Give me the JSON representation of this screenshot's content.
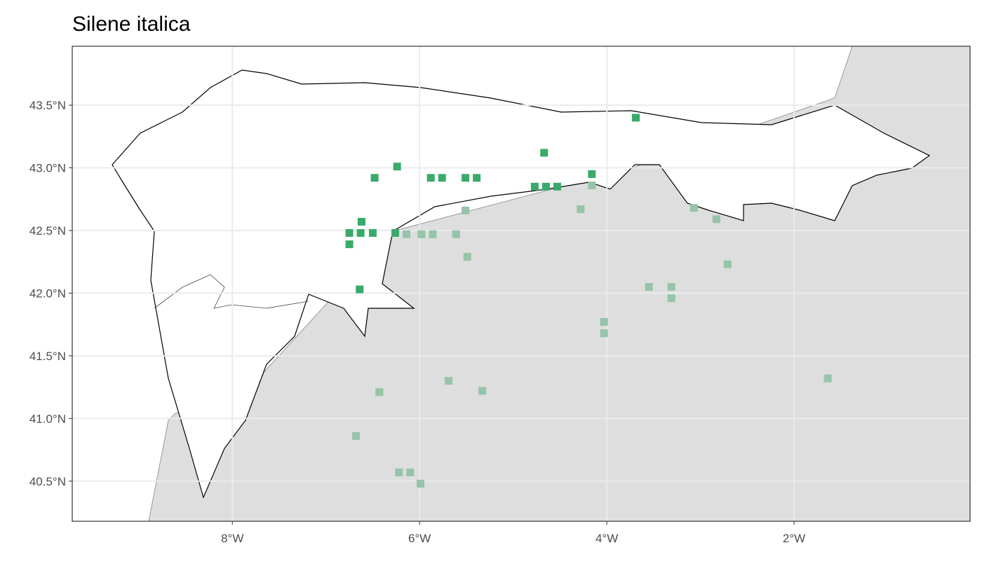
{
  "chart_data": {
    "type": "scatter",
    "title": "Silene italica",
    "xlim": [
      -9.71,
      -0.12
    ],
    "ylim": [
      40.18,
      43.97
    ],
    "xticks": [
      {
        "value": -8,
        "label": "8°W"
      },
      {
        "value": -6,
        "label": "6°W"
      },
      {
        "value": -4,
        "label": "4°W"
      },
      {
        "value": -2,
        "label": "2°W"
      }
    ],
    "yticks": [
      {
        "value": 40.5,
        "label": "40.5°N"
      },
      {
        "value": 41.0,
        "label": "41.0°N"
      },
      {
        "value": 41.5,
        "label": "41.5°N"
      },
      {
        "value": 42.0,
        "label": "42.0°N"
      },
      {
        "value": 42.5,
        "label": "42.5°N"
      },
      {
        "value": 43.0,
        "label": "43.0°N"
      },
      {
        "value": 43.5,
        "label": "43.5°N"
      }
    ],
    "grid": true,
    "series": [
      {
        "color": "#3aaa6a",
        "x": [
          -3.69,
          -4.67,
          -6.24,
          -6.48,
          -5.88,
          -5.76,
          -5.51,
          -5.39,
          -4.16,
          -4.77,
          -4.65,
          -4.53,
          -6.62,
          -6.75,
          -6.63,
          -6.5,
          -6.26,
          -6.75,
          -6.64
        ],
        "y": [
          43.4,
          43.12,
          43.01,
          42.92,
          42.92,
          42.92,
          42.92,
          42.92,
          42.95,
          42.85,
          42.85,
          42.85,
          42.57,
          42.48,
          42.48,
          42.48,
          42.48,
          42.39,
          42.03
        ]
      },
      {
        "color": "#95c4a8",
        "x": [
          -4.16,
          -5.51,
          -4.28,
          -3.07,
          -2.83,
          -6.14,
          -5.98,
          -5.86,
          -5.61,
          -5.49,
          -2.71,
          -3.55,
          -3.31,
          -3.31,
          -4.03,
          -4.03,
          -5.69,
          -5.33,
          -6.43,
          -1.64,
          -6.68,
          -6.22,
          -6.1,
          -5.99
        ],
        "y": [
          42.86,
          42.66,
          42.67,
          42.68,
          42.59,
          42.47,
          42.47,
          42.47,
          42.47,
          42.29,
          42.23,
          42.05,
          42.05,
          41.96,
          41.77,
          41.68,
          41.3,
          41.22,
          41.21,
          41.32,
          40.86,
          40.57,
          40.57,
          40.48
        ]
      }
    ]
  }
}
